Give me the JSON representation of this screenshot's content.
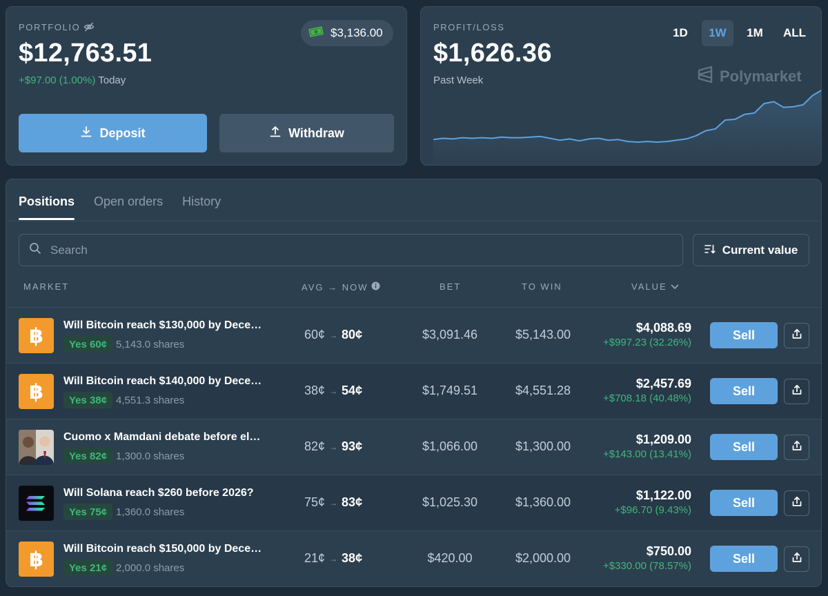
{
  "portfolio": {
    "label": "PORTFOLIO",
    "value": "$12,763.51",
    "cash": "$3,136.00",
    "change": "+$97.00 (1.00%)",
    "change_period": "Today",
    "deposit_label": "Deposit",
    "withdraw_label": "Withdraw"
  },
  "pnl": {
    "label": "PROFIT/LOSS",
    "value": "$1,626.36",
    "period": "Past Week",
    "brand": "Polymarket",
    "ranges": [
      "1D",
      "1W",
      "1M",
      "ALL"
    ],
    "active_range": "1W"
  },
  "chart_data": {
    "type": "area",
    "title": "",
    "xlabel": "",
    "ylabel": "",
    "grid": false,
    "legend": "none",
    "series": [
      {
        "values": [
          0,
          2,
          1,
          3,
          2,
          3,
          2,
          4,
          3,
          3,
          4,
          5,
          2,
          -1,
          1,
          -2,
          1,
          2,
          -1,
          0,
          -3,
          -4,
          -3,
          -4,
          -3,
          -1,
          1,
          6,
          14,
          17,
          31,
          32,
          40,
          42,
          57,
          60,
          51,
          52,
          55,
          70,
          79
        ]
      }
    ],
    "colors": {
      "line": "#5ea2dd",
      "fill": "#5ea2dd"
    }
  },
  "tabs": [
    "Positions",
    "Open orders",
    "History"
  ],
  "active_tab": "Positions",
  "search": {
    "placeholder": "Search"
  },
  "sort": {
    "label": "Current value"
  },
  "columns": {
    "market": "MARKET",
    "avg_now": "AVG → NOW",
    "bet": "BET",
    "to_win": "TO WIN",
    "value": "VALUE"
  },
  "sell_label": "Sell",
  "positions": [
    {
      "title": "Will Bitcoin reach $130,000 by Dece…",
      "icon": "bitcoin-icon",
      "outcome": "Yes 60¢",
      "shares": "5,143.0 shares",
      "avg": "60¢",
      "now": "80¢",
      "bet": "$3,091.46",
      "to_win": "$5,143.00",
      "value": "$4,088.69",
      "gain": "+$997.23 (32.26%)"
    },
    {
      "title": "Will Bitcoin reach $140,000 by Dece…",
      "icon": "bitcoin-icon",
      "outcome": "Yes 38¢",
      "shares": "4,551.3 shares",
      "avg": "38¢",
      "now": "54¢",
      "bet": "$1,749.51",
      "to_win": "$4,551.28",
      "value": "$2,457.69",
      "gain": "+$708.18 (40.48%)"
    },
    {
      "title": "Cuomo x Mamdani debate before el…",
      "icon": "candidates-photo",
      "outcome": "Yes 82¢",
      "shares": "1,300.0 shares",
      "avg": "82¢",
      "now": "93¢",
      "bet": "$1,066.00",
      "to_win": "$1,300.00",
      "value": "$1,209.00",
      "gain": "+$143.00 (13.41%)"
    },
    {
      "title": "Will Solana reach $260 before 2026?",
      "icon": "solana-icon",
      "outcome": "Yes 75¢",
      "shares": "1,360.0 shares",
      "avg": "75¢",
      "now": "83¢",
      "bet": "$1,025.30",
      "to_win": "$1,360.00",
      "value": "$1,122.00",
      "gain": "+$96.70 (9.43%)"
    },
    {
      "title": "Will Bitcoin reach $150,000 by Dece…",
      "icon": "bitcoin-icon",
      "outcome": "Yes 21¢",
      "shares": "2,000.0 shares",
      "avg": "21¢",
      "now": "38¢",
      "bet": "$420.00",
      "to_win": "$2,000.00",
      "value": "$750.00",
      "gain": "+$330.00 (78.57%)"
    }
  ]
}
